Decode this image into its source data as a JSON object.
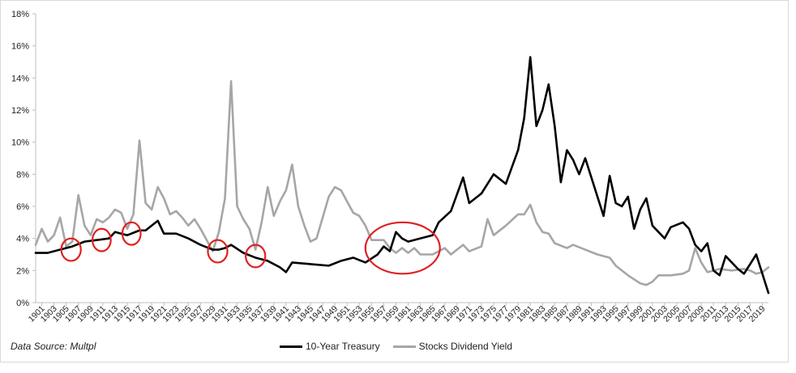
{
  "source_note": "Data Source: Multpl",
  "colors": {
    "treasury": "#000000",
    "dividend": "#a6a6a6",
    "highlight": "#e02020",
    "axis": "#bfbfbf"
  },
  "chart_data": {
    "type": "line",
    "title": "",
    "xlabel": "",
    "ylabel": "",
    "xlim": [
      1900,
      2020
    ],
    "ylim": [
      0,
      18
    ],
    "y_ticks": [
      0,
      2,
      4,
      6,
      8,
      10,
      12,
      14,
      16,
      18
    ],
    "y_tick_labels": [
      "0%",
      "2%",
      "4%",
      "6%",
      "8%",
      "10%",
      "12%",
      "14%",
      "16%",
      "18%"
    ],
    "x_tick_labels": [
      "1901",
      "1903",
      "1905",
      "1907",
      "1909",
      "1911",
      "1913",
      "1915",
      "1917",
      "1919",
      "1921",
      "1923",
      "1925",
      "1927",
      "1929",
      "1931",
      "1933",
      "1935",
      "1937",
      "1939",
      "1941",
      "1943",
      "1945",
      "1947",
      "1949",
      "1951",
      "1953",
      "1955",
      "1957",
      "1959",
      "1961",
      "1963",
      "1965",
      "1967",
      "1969",
      "1971",
      "1973",
      "1975",
      "1977",
      "1979",
      "1981",
      "1983",
      "1985",
      "1987",
      "1989",
      "1991",
      "1993",
      "1995",
      "1997",
      "1999",
      "2001",
      "2003",
      "2005",
      "2007",
      "2009",
      "2011",
      "2013",
      "2015",
      "2017",
      "2019"
    ],
    "grid": false,
    "legend_position": "bottom",
    "series": [
      {
        "name": "10-Year Treasury",
        "color": "#000000",
        "points": [
          [
            1900,
            3.1
          ],
          [
            1902,
            3.1
          ],
          [
            1904,
            3.3
          ],
          [
            1906,
            3.5
          ],
          [
            1908,
            3.8
          ],
          [
            1910,
            3.9
          ],
          [
            1912,
            4.0
          ],
          [
            1913,
            4.4
          ],
          [
            1915,
            4.2
          ],
          [
            1917,
            4.5
          ],
          [
            1918,
            4.5
          ],
          [
            1920,
            5.1
          ],
          [
            1921,
            4.3
          ],
          [
            1923,
            4.3
          ],
          [
            1925,
            4.0
          ],
          [
            1927,
            3.6
          ],
          [
            1929,
            3.3
          ],
          [
            1930,
            3.3
          ],
          [
            1931,
            3.4
          ],
          [
            1932,
            3.6
          ],
          [
            1934,
            3.1
          ],
          [
            1936,
            2.8
          ],
          [
            1938,
            2.6
          ],
          [
            1940,
            2.2
          ],
          [
            1941,
            1.9
          ],
          [
            1942,
            2.5
          ],
          [
            1945,
            2.4
          ],
          [
            1948,
            2.3
          ],
          [
            1950,
            2.6
          ],
          [
            1952,
            2.8
          ],
          [
            1954,
            2.5
          ],
          [
            1956,
            3.0
          ],
          [
            1957,
            3.5
          ],
          [
            1958,
            3.2
          ],
          [
            1959,
            4.4
          ],
          [
            1960,
            4.0
          ],
          [
            1961,
            3.8
          ],
          [
            1962,
            3.9
          ],
          [
            1963,
            4.0
          ],
          [
            1965,
            4.2
          ],
          [
            1966,
            5.0
          ],
          [
            1968,
            5.7
          ],
          [
            1970,
            7.8
          ],
          [
            1971,
            6.2
          ],
          [
            1973,
            6.8
          ],
          [
            1975,
            8.0
          ],
          [
            1977,
            7.4
          ],
          [
            1979,
            9.5
          ],
          [
            1980,
            11.5
          ],
          [
            1981,
            15.3
          ],
          [
            1982,
            11.0
          ],
          [
            1983,
            12.0
          ],
          [
            1984,
            13.6
          ],
          [
            1985,
            11.0
          ],
          [
            1986,
            7.5
          ],
          [
            1987,
            9.5
          ],
          [
            1988,
            8.9
          ],
          [
            1989,
            8.0
          ],
          [
            1990,
            9.0
          ],
          [
            1991,
            7.8
          ],
          [
            1993,
            5.4
          ],
          [
            1994,
            7.9
          ],
          [
            1995,
            6.2
          ],
          [
            1996,
            6.0
          ],
          [
            1997,
            6.6
          ],
          [
            1998,
            4.6
          ],
          [
            1999,
            5.8
          ],
          [
            2000,
            6.5
          ],
          [
            2001,
            4.8
          ],
          [
            2003,
            4.0
          ],
          [
            2004,
            4.7
          ],
          [
            2006,
            5.0
          ],
          [
            2007,
            4.6
          ],
          [
            2008,
            3.6
          ],
          [
            2009,
            3.2
          ],
          [
            2010,
            3.7
          ],
          [
            2011,
            2.0
          ],
          [
            2012,
            1.7
          ],
          [
            2013,
            2.9
          ],
          [
            2014,
            2.5
          ],
          [
            2015,
            2.1
          ],
          [
            2016,
            1.8
          ],
          [
            2017,
            2.4
          ],
          [
            2018,
            3.0
          ],
          [
            2019,
            1.8
          ],
          [
            2020,
            0.6
          ]
        ]
      },
      {
        "name": "Stocks Dividend Yield",
        "color": "#a6a6a6",
        "points": [
          [
            1900,
            3.6
          ],
          [
            1901,
            4.6
          ],
          [
            1902,
            3.8
          ],
          [
            1903,
            4.2
          ],
          [
            1904,
            5.3
          ],
          [
            1905,
            3.5
          ],
          [
            1906,
            3.8
          ],
          [
            1907,
            6.7
          ],
          [
            1908,
            4.8
          ],
          [
            1909,
            4.2
          ],
          [
            1910,
            5.2
          ],
          [
            1911,
            5.0
          ],
          [
            1912,
            5.3
          ],
          [
            1913,
            5.8
          ],
          [
            1914,
            5.6
          ],
          [
            1915,
            4.6
          ],
          [
            1916,
            5.5
          ],
          [
            1917,
            10.1
          ],
          [
            1918,
            6.2
          ],
          [
            1919,
            5.8
          ],
          [
            1920,
            7.2
          ],
          [
            1921,
            6.5
          ],
          [
            1922,
            5.5
          ],
          [
            1923,
            5.7
          ],
          [
            1924,
            5.3
          ],
          [
            1925,
            4.8
          ],
          [
            1926,
            5.2
          ],
          [
            1927,
            4.6
          ],
          [
            1928,
            3.9
          ],
          [
            1929,
            3.2
          ],
          [
            1930,
            4.4
          ],
          [
            1931,
            6.5
          ],
          [
            1932,
            13.8
          ],
          [
            1933,
            6.0
          ],
          [
            1934,
            5.2
          ],
          [
            1935,
            4.6
          ],
          [
            1936,
            3.3
          ],
          [
            1937,
            5.0
          ],
          [
            1938,
            7.2
          ],
          [
            1939,
            5.4
          ],
          [
            1940,
            6.3
          ],
          [
            1941,
            7.0
          ],
          [
            1942,
            8.6
          ],
          [
            1943,
            6.0
          ],
          [
            1944,
            4.8
          ],
          [
            1945,
            3.8
          ],
          [
            1946,
            4.0
          ],
          [
            1947,
            5.3
          ],
          [
            1948,
            6.6
          ],
          [
            1949,
            7.2
          ],
          [
            1950,
            7.0
          ],
          [
            1951,
            6.3
          ],
          [
            1952,
            5.6
          ],
          [
            1953,
            5.4
          ],
          [
            1954,
            4.8
          ],
          [
            1955,
            3.9
          ],
          [
            1957,
            3.9
          ],
          [
            1958,
            3.4
          ],
          [
            1959,
            3.1
          ],
          [
            1960,
            3.4
          ],
          [
            1961,
            3.1
          ],
          [
            1962,
            3.4
          ],
          [
            1963,
            3.0
          ],
          [
            1965,
            3.0
          ],
          [
            1967,
            3.4
          ],
          [
            1968,
            3.0
          ],
          [
            1970,
            3.6
          ],
          [
            1971,
            3.2
          ],
          [
            1973,
            3.5
          ],
          [
            1974,
            5.2
          ],
          [
            1975,
            4.2
          ],
          [
            1977,
            4.8
          ],
          [
            1979,
            5.5
          ],
          [
            1980,
            5.5
          ],
          [
            1981,
            6.1
          ],
          [
            1982,
            5.0
          ],
          [
            1983,
            4.4
          ],
          [
            1984,
            4.3
          ],
          [
            1985,
            3.7
          ],
          [
            1987,
            3.4
          ],
          [
            1988,
            3.6
          ],
          [
            1990,
            3.3
          ],
          [
            1992,
            3.0
          ],
          [
            1994,
            2.8
          ],
          [
            1995,
            2.3
          ],
          [
            1997,
            1.7
          ],
          [
            1999,
            1.2
          ],
          [
            2000,
            1.1
          ],
          [
            2001,
            1.3
          ],
          [
            2002,
            1.7
          ],
          [
            2004,
            1.7
          ],
          [
            2006,
            1.8
          ],
          [
            2007,
            2.0
          ],
          [
            2008,
            3.4
          ],
          [
            2009,
            2.5
          ],
          [
            2010,
            1.9
          ],
          [
            2012,
            2.1
          ],
          [
            2014,
            2.0
          ],
          [
            2016,
            2.1
          ],
          [
            2017,
            2.0
          ],
          [
            2018,
            1.8
          ],
          [
            2019,
            1.9
          ],
          [
            2020,
            2.2
          ]
        ]
      }
    ],
    "highlights": [
      {
        "cx": 1905.8,
        "cy": 3.3,
        "rx_years": 1.6,
        "ry_pct": 0.7
      },
      {
        "cx": 1910.8,
        "cy": 3.9,
        "rx_years": 1.5,
        "ry_pct": 0.7
      },
      {
        "cx": 1915.7,
        "cy": 4.3,
        "rx_years": 1.5,
        "ry_pct": 0.7
      },
      {
        "cx": 1929.8,
        "cy": 3.2,
        "rx_years": 1.6,
        "ry_pct": 0.7
      },
      {
        "cx": 1936.0,
        "cy": 2.9,
        "rx_years": 1.6,
        "ry_pct": 0.7
      },
      {
        "cx": 1960.1,
        "cy": 3.4,
        "rx_years": 6.1,
        "ry_pct": 1.6
      }
    ]
  }
}
